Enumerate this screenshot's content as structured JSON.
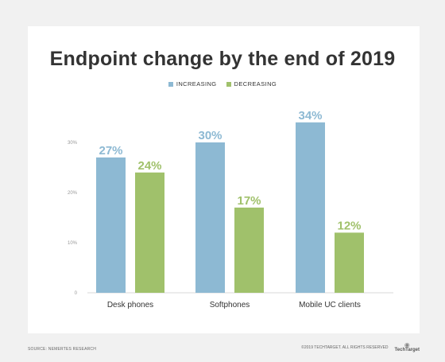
{
  "chart_data": {
    "type": "bar",
    "title": "Endpoint change by the end of 2019",
    "categories": [
      "Desk phones",
      "Softphones",
      "Mobile UC clients"
    ],
    "series": [
      {
        "name": "INCREASING",
        "values": [
          27,
          30,
          34
        ],
        "labels": [
          "27%",
          "30%",
          "34%"
        ],
        "color": "#8db9d3"
      },
      {
        "name": "DECREASING",
        "values": [
          24,
          17,
          12
        ],
        "labels": [
          "24%",
          "17%",
          "12%"
        ],
        "color": "#a0c16b"
      }
    ],
    "yticks": [
      "0",
      "10%",
      "20%",
      "30%"
    ],
    "ytick_values": [
      0,
      10,
      20,
      30
    ],
    "ylim": [
      0,
      30
    ],
    "grid": false,
    "legend": "top-center"
  },
  "footer": {
    "source": "SOURCE: NEMERTES RESEARCH",
    "copyright": "©2019 TECHTARGET. ALL RIGHTS RESERVED",
    "brand": "TechTarget"
  }
}
